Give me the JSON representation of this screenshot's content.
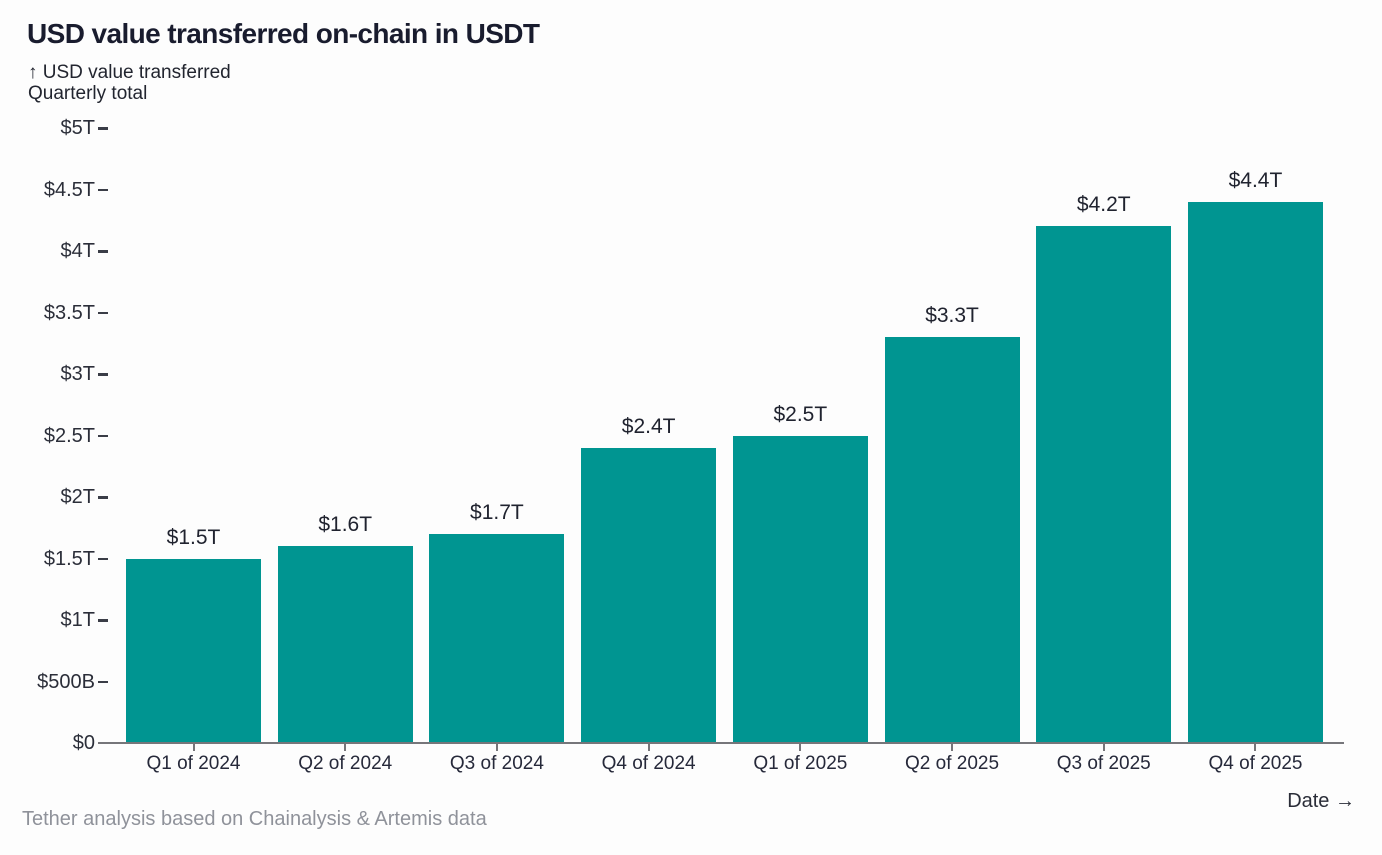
{
  "header": {
    "title": "USD value transferred on-chain in USDT",
    "y_axis_label": "↑ USD value transferred",
    "y_axis_sublabel": "Quarterly total"
  },
  "footer": {
    "source": "Tether analysis based on Chainalysis & Artemis data",
    "x_axis_label": "Date →"
  },
  "colors": {
    "bar": "#009591",
    "title_text": "#191c2e",
    "axis_text": "#2b2e39",
    "axis_line": "#76767a",
    "muted_text": "#8f929a"
  },
  "chart_data": {
    "type": "bar",
    "title": "USD value transferred on-chain in USDT",
    "ylabel": "USD value transferred",
    "ylabel_note": "Quarterly total",
    "xlabel": "Date →",
    "unit": "USD trillions",
    "categories": [
      "Q1 of 2024",
      "Q2 of 2024",
      "Q3 of 2024",
      "Q4 of 2024",
      "Q1 of 2025",
      "Q2 of 2025",
      "Q3 of 2025",
      "Q4 of 2025"
    ],
    "values": [
      1.5,
      1.6,
      1.7,
      2.4,
      2.5,
      3.3,
      4.2,
      4.4
    ],
    "value_labels": [
      "$1.5T",
      "$1.6T",
      "$1.7T",
      "$2.4T",
      "$2.5T",
      "$3.3T",
      "$4.2T",
      "$4.4T"
    ],
    "ylim": [
      0,
      5
    ],
    "yticks": [
      {
        "value": 0,
        "label": "$0"
      },
      {
        "value": 0.5,
        "label": "$500B"
      },
      {
        "value": 1,
        "label": "$1T"
      },
      {
        "value": 1.5,
        "label": "$1.5T"
      },
      {
        "value": 2,
        "label": "$2T"
      },
      {
        "value": 2.5,
        "label": "$2.5T"
      },
      {
        "value": 3,
        "label": "$3T"
      },
      {
        "value": 3.5,
        "label": "$3.5T"
      },
      {
        "value": 4,
        "label": "$4T"
      },
      {
        "value": 4.5,
        "label": "$4.5T"
      },
      {
        "value": 5,
        "label": "$5T"
      }
    ],
    "grid": false,
    "legend": false,
    "bar_color": "#009591",
    "source": "Tether analysis based on Chainalysis & Artemis data"
  }
}
